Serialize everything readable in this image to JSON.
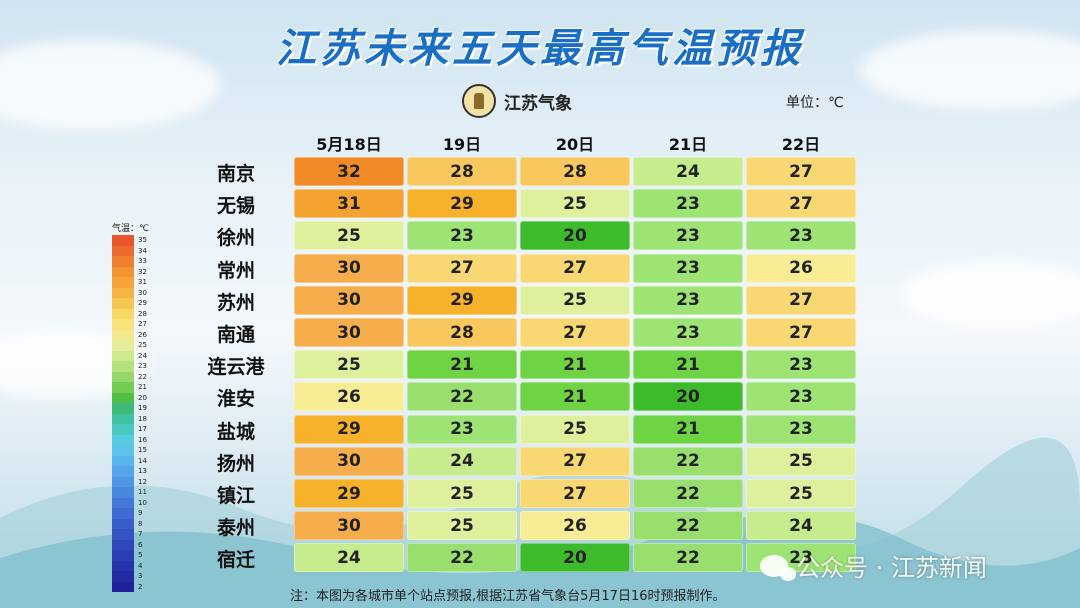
{
  "title": "江苏未来五天最高气温预报",
  "logo_text": "江苏气象",
  "unit_label": "单位：℃",
  "note": "注：本图为各城市单个站点预报,根据江苏省气象台5月17日16时预报制作。",
  "watermark": "公众号 · 江苏新闻",
  "legend": {
    "title": "气温：℃",
    "values": [
      35,
      34,
      33,
      32,
      31,
      30,
      29,
      28,
      27,
      26,
      25,
      24,
      23,
      22,
      21,
      20,
      19,
      18,
      17,
      16,
      15,
      14,
      13,
      12,
      11,
      10,
      9,
      8,
      7,
      6,
      5,
      4,
      3,
      2
    ],
    "colors": [
      "#e8552a",
      "#ec6a2c",
      "#ef7f2f",
      "#f29432",
      "#f4a43a",
      "#f6b445",
      "#f8c652",
      "#f9d866",
      "#f7e27c",
      "#f2e98e",
      "#e3ee9a",
      "#cdeb8e",
      "#b3e27c",
      "#95d86a",
      "#73cc56",
      "#4fbf46",
      "#3fb97a",
      "#3fc1a2",
      "#48c9c2",
      "#56cbe0",
      "#5cc2ea",
      "#5ab4ec",
      "#56a5ea",
      "#5096e6",
      "#4a87e0",
      "#4479da",
      "#3e6bd2",
      "#395eca",
      "#3452c2",
      "#2f47ba",
      "#2b3db2",
      "#2733aa",
      "#2329a2",
      "#20209a"
    ]
  },
  "chart_data": {
    "type": "table",
    "title": "江苏未来五天最高气温预报",
    "unit": "℃",
    "columns": [
      "5月18日",
      "19日",
      "20日",
      "21日",
      "22日"
    ],
    "rows": [
      {
        "city": "南京",
        "values": [
          32,
          28,
          28,
          24,
          27
        ]
      },
      {
        "city": "无锡",
        "values": [
          31,
          29,
          25,
          23,
          27
        ]
      },
      {
        "city": "徐州",
        "values": [
          25,
          23,
          20,
          23,
          23
        ]
      },
      {
        "city": "常州",
        "values": [
          30,
          27,
          27,
          23,
          26
        ]
      },
      {
        "city": "苏州",
        "values": [
          30,
          29,
          25,
          23,
          27
        ]
      },
      {
        "city": "南通",
        "values": [
          30,
          28,
          27,
          23,
          27
        ]
      },
      {
        "city": "连云港",
        "values": [
          25,
          21,
          21,
          21,
          23
        ]
      },
      {
        "city": "淮安",
        "values": [
          26,
          22,
          21,
          20,
          23
        ]
      },
      {
        "city": "盐城",
        "values": [
          29,
          23,
          25,
          21,
          23
        ]
      },
      {
        "city": "扬州",
        "values": [
          30,
          24,
          27,
          22,
          25
        ]
      },
      {
        "city": "镇江",
        "values": [
          29,
          25,
          27,
          22,
          25
        ]
      },
      {
        "city": "泰州",
        "values": [
          30,
          25,
          26,
          22,
          24
        ]
      },
      {
        "city": "宿迁",
        "values": [
          24,
          22,
          20,
          22,
          23
        ]
      }
    ]
  }
}
